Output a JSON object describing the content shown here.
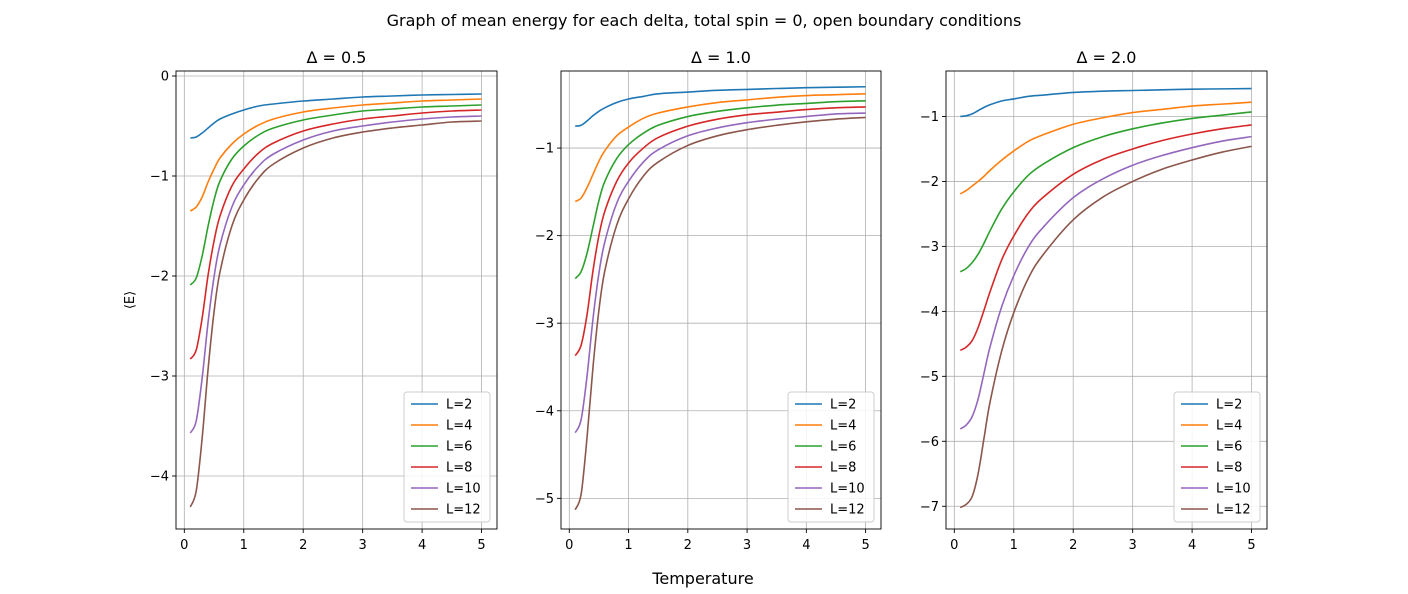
{
  "figure": {
    "title": "Graph of mean energy for each delta, total spin = 0, open boundary conditions",
    "xlabel": "Temperature",
    "ylabel": "⟨E⟩"
  },
  "series_colors": [
    "#1f77b4",
    "#ff7f0e",
    "#2ca02c",
    "#d62728",
    "#9467bd",
    "#8c564b"
  ],
  "chart_data": [
    {
      "type": "line",
      "title": "Δ = 0.5",
      "xlabel": "Temperature",
      "ylabel": "⟨E⟩",
      "xlim": [
        -0.14,
        5.26
      ],
      "ylim": [
        -4.53,
        0.05
      ],
      "xticks": [
        0,
        1,
        2,
        3,
        4,
        5
      ],
      "yticks": [
        0,
        -1,
        -2,
        -3,
        -4
      ],
      "grid": true,
      "legend_position": "lower right",
      "x": [
        0.1,
        0.2,
        0.3,
        0.4,
        0.5,
        0.6,
        0.8,
        1.0,
        1.25,
        1.5,
        2.0,
        2.5,
        3.0,
        3.5,
        4.0,
        4.5,
        5.0
      ],
      "series": [
        {
          "name": "L=2",
          "values": [
            -0.62,
            -0.61,
            -0.57,
            -0.52,
            -0.47,
            -0.43,
            -0.38,
            -0.34,
            -0.3,
            -0.28,
            -0.25,
            -0.23,
            -0.21,
            -0.2,
            -0.19,
            -0.185,
            -0.18
          ]
        },
        {
          "name": "L=4",
          "values": [
            -1.35,
            -1.31,
            -1.21,
            -1.06,
            -0.93,
            -0.82,
            -0.68,
            -0.58,
            -0.49,
            -0.43,
            -0.36,
            -0.32,
            -0.29,
            -0.27,
            -0.25,
            -0.24,
            -0.23
          ]
        },
        {
          "name": "L=6",
          "values": [
            -2.09,
            -2.02,
            -1.8,
            -1.5,
            -1.24,
            -1.05,
            -0.83,
            -0.7,
            -0.59,
            -0.52,
            -0.44,
            -0.39,
            -0.35,
            -0.33,
            -0.31,
            -0.3,
            -0.29
          ]
        },
        {
          "name": "L=8",
          "values": [
            -2.83,
            -2.74,
            -2.42,
            -1.99,
            -1.65,
            -1.4,
            -1.1,
            -0.93,
            -0.77,
            -0.67,
            -0.55,
            -0.48,
            -0.43,
            -0.4,
            -0.37,
            -0.35,
            -0.34
          ]
        },
        {
          "name": "L=10",
          "values": [
            -3.57,
            -3.45,
            -3.02,
            -2.46,
            -2.01,
            -1.69,
            -1.31,
            -1.09,
            -0.9,
            -0.78,
            -0.64,
            -0.55,
            -0.5,
            -0.46,
            -0.43,
            -0.41,
            -0.4
          ]
        },
        {
          "name": "L=12",
          "values": [
            -4.31,
            -4.15,
            -3.62,
            -2.93,
            -2.36,
            -1.96,
            -1.5,
            -1.24,
            -1.02,
            -0.88,
            -0.72,
            -0.62,
            -0.56,
            -0.52,
            -0.49,
            -0.46,
            -0.45
          ]
        }
      ]
    },
    {
      "type": "line",
      "title": "Δ = 1.0",
      "xlabel": "Temperature",
      "ylabel": "",
      "xlim": [
        -0.14,
        5.26
      ],
      "ylim": [
        -5.35,
        -0.12
      ],
      "xticks": [
        0,
        1,
        2,
        3,
        4,
        5
      ],
      "yticks": [
        -1,
        -2,
        -3,
        -4,
        -5
      ],
      "grid": true,
      "legend_position": "lower right",
      "x": [
        0.1,
        0.2,
        0.3,
        0.4,
        0.5,
        0.6,
        0.8,
        1.0,
        1.25,
        1.5,
        2.0,
        2.5,
        3.0,
        3.5,
        4.0,
        4.5,
        5.0
      ],
      "series": [
        {
          "name": "L=2",
          "values": [
            -0.75,
            -0.74,
            -0.69,
            -0.63,
            -0.58,
            -0.54,
            -0.48,
            -0.44,
            -0.41,
            -0.38,
            -0.36,
            -0.34,
            -0.33,
            -0.32,
            -0.31,
            -0.305,
            -0.3
          ]
        },
        {
          "name": "L=4",
          "values": [
            -1.61,
            -1.57,
            -1.45,
            -1.3,
            -1.15,
            -1.03,
            -0.86,
            -0.76,
            -0.66,
            -0.6,
            -0.53,
            -0.48,
            -0.45,
            -0.42,
            -0.4,
            -0.39,
            -0.38
          ]
        },
        {
          "name": "L=6",
          "values": [
            -2.49,
            -2.41,
            -2.2,
            -1.9,
            -1.6,
            -1.38,
            -1.12,
            -0.96,
            -0.83,
            -0.74,
            -0.64,
            -0.58,
            -0.54,
            -0.51,
            -0.49,
            -0.47,
            -0.46
          ]
        },
        {
          "name": "L=8",
          "values": [
            -3.37,
            -3.25,
            -2.9,
            -2.4,
            -2.0,
            -1.72,
            -1.38,
            -1.17,
            -1.0,
            -0.88,
            -0.75,
            -0.67,
            -0.62,
            -0.59,
            -0.56,
            -0.54,
            -0.53
          ]
        },
        {
          "name": "L=10",
          "values": [
            -4.25,
            -4.1,
            -3.6,
            -2.95,
            -2.43,
            -2.07,
            -1.63,
            -1.38,
            -1.16,
            -1.02,
            -0.86,
            -0.77,
            -0.71,
            -0.67,
            -0.64,
            -0.61,
            -0.6
          ]
        },
        {
          "name": "L=12",
          "values": [
            -5.13,
            -4.95,
            -4.3,
            -3.5,
            -2.85,
            -2.4,
            -1.88,
            -1.58,
            -1.32,
            -1.16,
            -0.97,
            -0.86,
            -0.79,
            -0.74,
            -0.7,
            -0.67,
            -0.65
          ]
        }
      ]
    },
    {
      "type": "line",
      "title": "Δ = 2.0",
      "xlabel": "Temperature",
      "ylabel": "",
      "xlim": [
        -0.14,
        5.26
      ],
      "ylim": [
        -7.35,
        -0.3
      ],
      "xticks": [
        0,
        1,
        2,
        3,
        4,
        5
      ],
      "yticks": [
        -1,
        -2,
        -3,
        -4,
        -5,
        -6,
        -7
      ],
      "grid": true,
      "legend_position": "lower right",
      "x": [
        0.1,
        0.2,
        0.3,
        0.4,
        0.5,
        0.6,
        0.8,
        1.0,
        1.25,
        1.5,
        2.0,
        2.5,
        3.0,
        3.5,
        4.0,
        4.5,
        5.0
      ],
      "series": [
        {
          "name": "L=2",
          "values": [
            -1.0,
            -0.99,
            -0.96,
            -0.91,
            -0.86,
            -0.82,
            -0.76,
            -0.73,
            -0.69,
            -0.67,
            -0.63,
            -0.61,
            -0.6,
            -0.59,
            -0.58,
            -0.575,
            -0.57
          ]
        },
        {
          "name": "L=4",
          "values": [
            -2.19,
            -2.14,
            -2.07,
            -2.0,
            -1.92,
            -1.83,
            -1.67,
            -1.53,
            -1.38,
            -1.28,
            -1.12,
            -1.02,
            -0.94,
            -0.89,
            -0.84,
            -0.81,
            -0.78
          ]
        },
        {
          "name": "L=6",
          "values": [
            -3.39,
            -3.34,
            -3.25,
            -3.12,
            -2.95,
            -2.76,
            -2.42,
            -2.16,
            -1.9,
            -1.73,
            -1.48,
            -1.31,
            -1.19,
            -1.1,
            -1.03,
            -0.98,
            -0.93
          ]
        },
        {
          "name": "L=8",
          "values": [
            -4.6,
            -4.55,
            -4.45,
            -4.25,
            -3.98,
            -3.7,
            -3.2,
            -2.84,
            -2.48,
            -2.24,
            -1.89,
            -1.66,
            -1.5,
            -1.37,
            -1.27,
            -1.19,
            -1.13
          ]
        },
        {
          "name": "L=10",
          "values": [
            -5.81,
            -5.75,
            -5.62,
            -5.35,
            -4.95,
            -4.55,
            -3.92,
            -3.45,
            -3.0,
            -2.7,
            -2.25,
            -1.96,
            -1.75,
            -1.6,
            -1.48,
            -1.38,
            -1.31
          ]
        },
        {
          "name": "L=12",
          "values": [
            -7.02,
            -6.97,
            -6.85,
            -6.5,
            -5.95,
            -5.4,
            -4.6,
            -4.02,
            -3.48,
            -3.12,
            -2.59,
            -2.24,
            -2.0,
            -1.81,
            -1.67,
            -1.55,
            -1.46
          ]
        }
      ]
    }
  ]
}
